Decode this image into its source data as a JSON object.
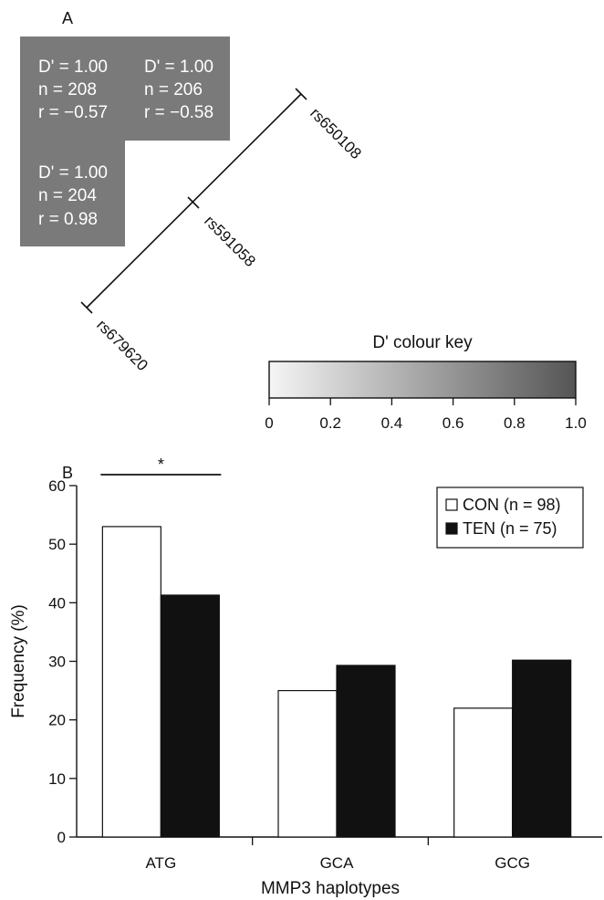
{
  "panel_a": {
    "label": "A",
    "cells": [
      {
        "lines": [
          "D' = 1.00",
          "n = 208",
          "r = −0.57"
        ]
      },
      {
        "lines": [
          "D' = 1.00",
          "n = 206",
          "r = −0.58"
        ]
      },
      {
        "lines": [
          "D' = 1.00",
          "n = 204",
          "r = 0.98"
        ]
      }
    ],
    "snps": [
      "rs650108",
      "rs591058",
      "rs679620"
    ],
    "colour_key": {
      "title": "D' colour key",
      "ticks": [
        "0",
        "0.2",
        "0.4",
        "0.6",
        "0.8",
        "1.0"
      ],
      "range": [
        0,
        1
      ]
    },
    "colors": {
      "cell": "#7a7a7a",
      "key_start": "#f5f5f5",
      "key_end": "#555555"
    }
  },
  "chart_data": {
    "type": "bar",
    "panel_label": "B",
    "categories": [
      "ATG",
      "GCA",
      "GCG"
    ],
    "series": [
      {
        "name": "CON (n = 98)",
        "color": "#ffffff",
        "values": [
          53,
          25,
          22
        ]
      },
      {
        "name": "TEN (n = 75)",
        "color": "#111111",
        "values": [
          41.3,
          29.3,
          30.2
        ]
      }
    ],
    "xlabel": "MMP3 haplotypes",
    "ylabel": "Frequency (%)",
    "ylim": [
      0,
      60
    ],
    "yticks": [
      0,
      10,
      20,
      30,
      40,
      50,
      60
    ],
    "grid": false,
    "legend_position": "top-right",
    "annotations": [
      {
        "text": "*",
        "category": "ATG"
      }
    ]
  }
}
